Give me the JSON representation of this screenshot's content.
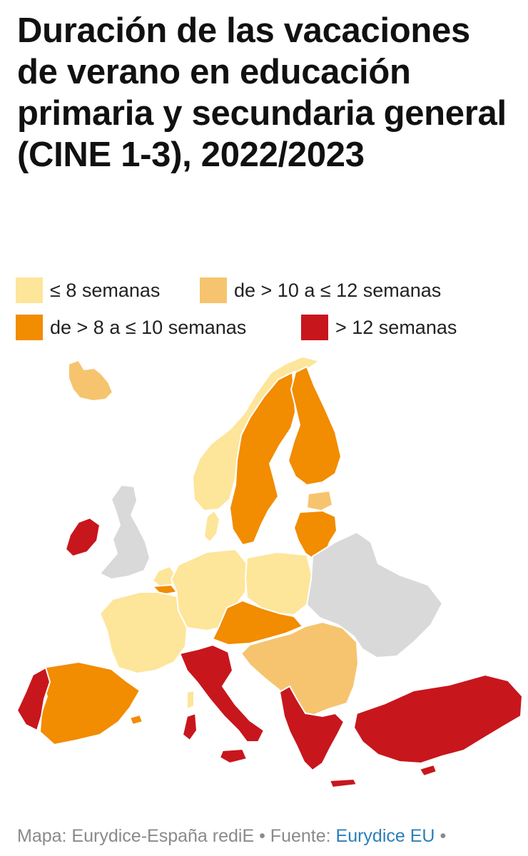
{
  "title": "Duración de las vacaciones de verano en educación primaria y secundaria general (CINE 1-3), 2022/2023",
  "legend": [
    {
      "label": "≤ 8 semanas",
      "color": "#fde59a"
    },
    {
      "label": "de > 10 a ≤ 12 semanas",
      "color": "#f6c46e"
    },
    {
      "label": "de > 8 a ≤ 10 semanas",
      "color": "#f28c00"
    },
    {
      "label": "> 12 semanas",
      "color": "#c8161d"
    }
  ],
  "colors": {
    "no_data": "#d9d9d9",
    "border": "#ffffff"
  },
  "footer": {
    "map_credit": "Mapa: Eurydice-España rediE",
    "separator": "•",
    "source_prefix": "Fuente:",
    "source_link": "Eurydice EU",
    "trailing": "•"
  }
}
